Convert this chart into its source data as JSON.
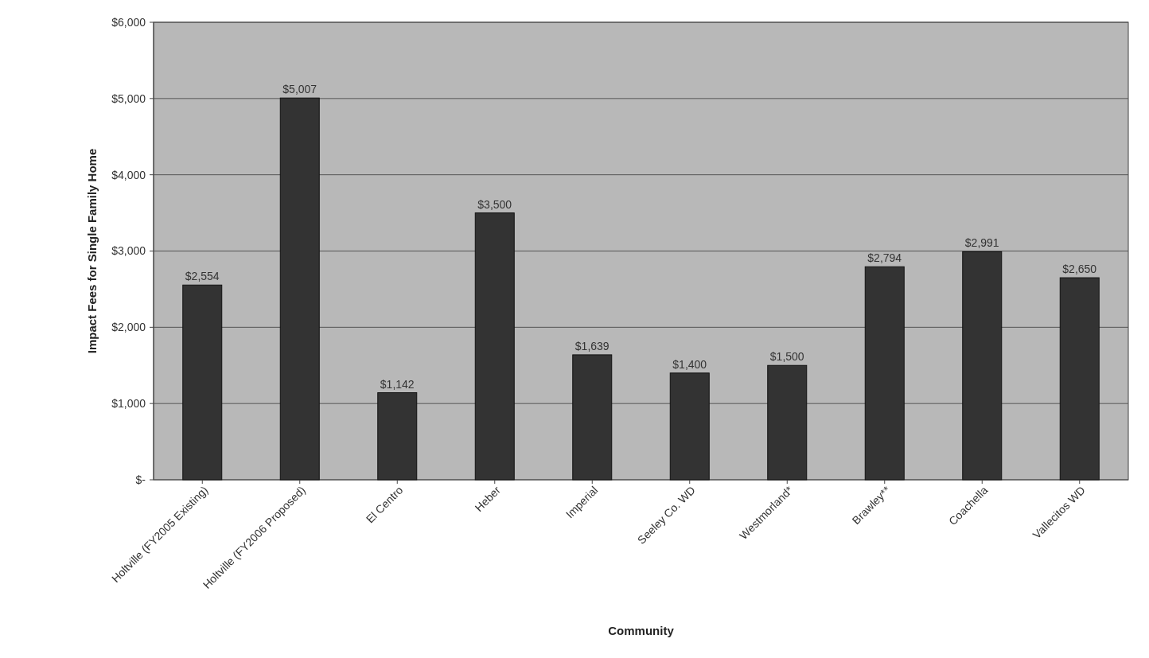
{
  "chart_data": {
    "type": "bar",
    "xlabel": "Community",
    "ylabel": "Impact Fees for Single Family Home",
    "categories": [
      "Holtville (FY2005 Existing)",
      "Holtville (FY2006 Proposed)",
      "El Centro",
      "Heber",
      "Imperial",
      "Seeley Co. WD",
      "Westmorland*",
      "Brawley**",
      "Coachella",
      "Vallecitos WD"
    ],
    "values": [
      2554,
      5007,
      1142,
      3500,
      1639,
      1400,
      1500,
      2794,
      2991,
      2650
    ],
    "value_labels": [
      "$2,554",
      "$5,007",
      "$1,142",
      "$3,500",
      "$1,639",
      "$1,400",
      "$1,500",
      "$2,794",
      "$2,991",
      "$2,650"
    ],
    "color": "#333333",
    "ylim": [
      0,
      6000
    ],
    "yticks": [
      {
        "value": 0,
        "label": "$-"
      },
      {
        "value": 1000,
        "label": "$1,000"
      },
      {
        "value": 2000,
        "label": "$2,000"
      },
      {
        "value": 3000,
        "label": "$3,000"
      },
      {
        "value": 4000,
        "label": "$4,000"
      },
      {
        "value": 5000,
        "label": "$5,000"
      },
      {
        "value": 6000,
        "label": "$6,000"
      }
    ],
    "grid": "y"
  }
}
